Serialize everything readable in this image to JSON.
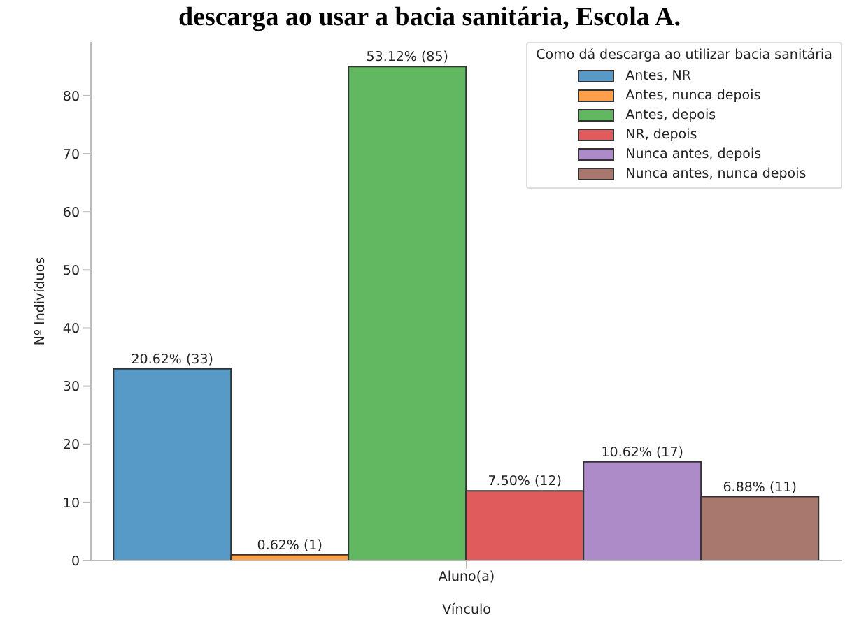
{
  "chart_data": {
    "type": "bar",
    "title": "descarga ao usar a bacia sanitária, Escola A.",
    "xlabel": "Vínculo",
    "ylabel": "Nº Indivíduos",
    "legend_title": "Como dá descarga ao utilizar bacia sanitária",
    "categories": [
      "Aluno(a)"
    ],
    "series": [
      {
        "name": "Antes, NR",
        "color": "#5799c7",
        "values": [
          33
        ],
        "value_labels": [
          "20.62% (33)"
        ]
      },
      {
        "name": "Antes, nunca depois",
        "color": "#ff9f4a",
        "values": [
          1
        ],
        "value_labels": [
          "0.62% (1)"
        ]
      },
      {
        "name": "Antes, depois",
        "color": "#61b861",
        "values": [
          85
        ],
        "value_labels": [
          "53.12% (85)"
        ]
      },
      {
        "name": "NR, depois",
        "color": "#e05c5c",
        "values": [
          12
        ],
        "value_labels": [
          "7.50% (12)"
        ]
      },
      {
        "name": "Nunca antes, depois",
        "color": "#ad8bc9",
        "values": [
          17
        ],
        "value_labels": [
          "10.62% (17)"
        ]
      },
      {
        "name": "Nunca antes, nunca depois",
        "color": "#a8786e",
        "values": [
          11
        ],
        "value_labels": [
          "6.88% (11)"
        ]
      }
    ],
    "ylim": [
      0,
      89.25
    ],
    "yticks": [
      0,
      10,
      20,
      30,
      40,
      50,
      60,
      70,
      80
    ],
    "grid": false,
    "legend": "top right"
  }
}
